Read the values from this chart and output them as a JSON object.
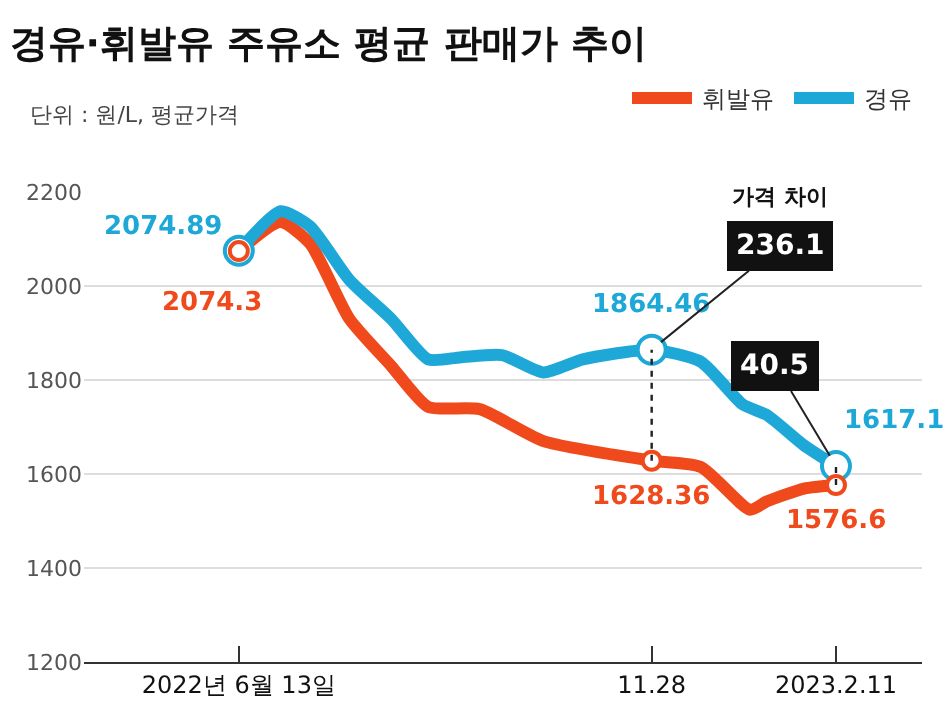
{
  "chart_data": {
    "type": "line",
    "title": "경유·휘발유 주유소 평균 판매가 추이",
    "subtitle": "단위 : 원/L, 평균가격",
    "series": [
      {
        "name": "휘발유",
        "color": "#f04a1c",
        "x": [
          "2022-06-13",
          "2022-06-30",
          "2022-07-12",
          "2022-07-28",
          "2022-08-14",
          "2022-08-29",
          "2022-09-19",
          "2022-10-15",
          "2022-11-28",
          "2022-12-18",
          "2023-01-07",
          "2023-01-14",
          "2023-01-29",
          "2023-02-11"
        ],
        "values": [
          2074.3,
          2136,
          2090,
          1930,
          1830,
          1743,
          1738,
          1670,
          1628.36,
          1615,
          1524,
          1542,
          1569,
          1576.6
        ]
      },
      {
        "name": "경유",
        "color": "#1ea8d8",
        "x": [
          "2022-06-13",
          "2022-06-30",
          "2022-07-12",
          "2022-07-28",
          "2022-08-14",
          "2022-08-29",
          "2022-09-11",
          "2022-09-28",
          "2022-10-15",
          "2022-10-31",
          "2022-11-28",
          "2022-12-18",
          "2023-01-04",
          "2023-01-14",
          "2023-01-29",
          "2023-02-11"
        ],
        "values": [
          2074.89,
          2159,
          2127,
          2013,
          1930,
          1844,
          1848,
          1853,
          1816,
          1844,
          1864.46,
          1839,
          1748,
          1725,
          1661,
          1617.1
        ]
      }
    ],
    "xlim": [
      "2022-04-11",
      "2023-03-18"
    ],
    "xticks": [
      {
        "value": "2022-06-13",
        "label": "2022년 6월 13일"
      },
      {
        "value": "2022-11-28",
        "label": "11.28"
      },
      {
        "value": "2023-02-11",
        "label": "2023.2.11"
      }
    ],
    "ylim": [
      1200,
      2200
    ],
    "yticks": [
      1200,
      1400,
      1600,
      1800,
      2000,
      2200
    ],
    "grid": "y",
    "legend": "top right",
    "line_style": "solid",
    "annotations": [
      {
        "text": "2074.89",
        "x": "2022-06-13",
        "y": 2074.89
      },
      {
        "text": "2074.3",
        "x": "2022-06-13",
        "y": 2074.3
      },
      {
        "text": "1864.46",
        "x": "2022-11-28",
        "y": 1864.46
      },
      {
        "text": "1628.36",
        "x": "2022-11-28",
        "y": 1628.36
      },
      {
        "text": "1617.1",
        "x": "2023-02-11",
        "y": 1617.1
      },
      {
        "text": "1576.6",
        "x": "2023-02-11",
        "y": 1576.6
      },
      "가격 차이",
      {
        "text": "236.1",
        "x": "2022-11-28",
        "y": 1864.46
      },
      {
        "text": "40.5",
        "x": "2023-02-11",
        "y": 1617.1
      }
    ]
  }
}
